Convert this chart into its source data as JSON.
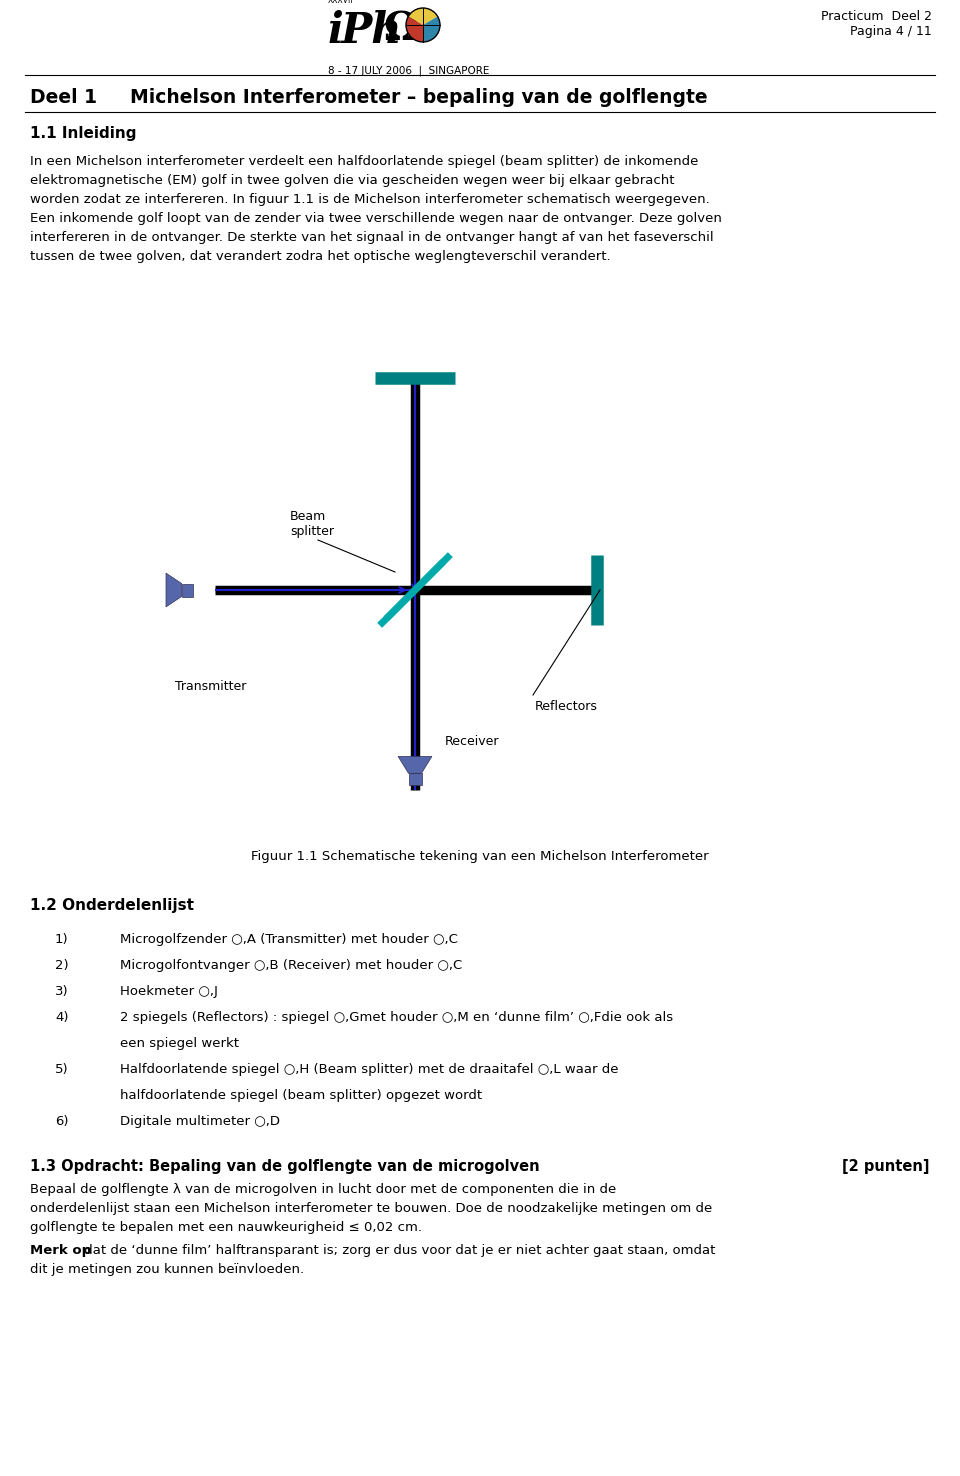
{
  "page_header_right": "Practicum  Deel 2\nPagina 4 / 11",
  "section_title_num": "Deel 1",
  "section_title_text": "Michelson Interferometer – bepaling van de golflengte",
  "subsection1": "1.1 Inleiding",
  "para1_lines": [
    "In een Michelson interferometer verdeelt een halfdoorlatende spiegel (beam splitter) de inkomende",
    "elektromagnetische (EM) golf in twee golven die via gescheiden wegen weer bij elkaar gebracht",
    "worden zodat ze interfereren. In figuur 1.1 is de Michelson interferometer schematisch weergegeven.",
    "Een inkomende golf loopt van de zender via twee verschillende wegen naar de ontvanger. Deze golven",
    "interfereren in de ontvanger. De sterkte van het signaal in de ontvanger hangt af van het faseverschil",
    "tussen de twee golven, dat verandert zodra het optische weglengteverschil verandert."
  ],
  "fig_caption": "Figuur 1.1 Schematische tekening van een Michelson Interferometer",
  "subsection2": "1.2 Onderdelenlijst",
  "item_nums": [
    "1)",
    "2)",
    "3)",
    "4)",
    "",
    "5)",
    "",
    "6)"
  ],
  "item_texts": [
    "Microgolfzender ○,A (Transmitter) met houder ○,C",
    "Microgolfontvanger ○,B (Receiver) met houder ○,C",
    "Hoekmeter ○,J",
    "2 spiegels (Reflectors) : spiegel ○,Gmet houder ○,M en ‘dunne film’ ○,Fdie ook als",
    "een spiegel werkt",
    "Halfdoorlatende spiegel ○,H (Beam splitter) met de draaitafel ○,L waar de",
    "halfdoorlatende spiegel (beam splitter) opgezet wordt",
    "Digitale multimeter ○,D"
  ],
  "subsection3": "1.3 Opdracht: Bepaling van de golflengte van de microgolven",
  "score": "[2 punten]",
  "para3_lines": [
    "Bepaal de golflengte λ van de microgolven in lucht door met de componenten die in de",
    "onderdelenlijst staan een Michelson interferometer te bouwen. Doe de noodzakelijke metingen om de",
    "golflengte te bepalen met een nauwkeurigheid ≤ 0,02 cm."
  ],
  "para4_bold": "Merk op",
  "para4_rest_lines": [
    " dat de ‘dunne film’ halftransparant is; zorg er dus voor dat je er niet achter gaat staan, omdat",
    "dit je metingen zou kunnen beïnvloeden."
  ],
  "beam_color": "#2222cc",
  "reflector_color": "#008080",
  "splitter_color": "#00aaaa",
  "component_color": "#5566aa"
}
